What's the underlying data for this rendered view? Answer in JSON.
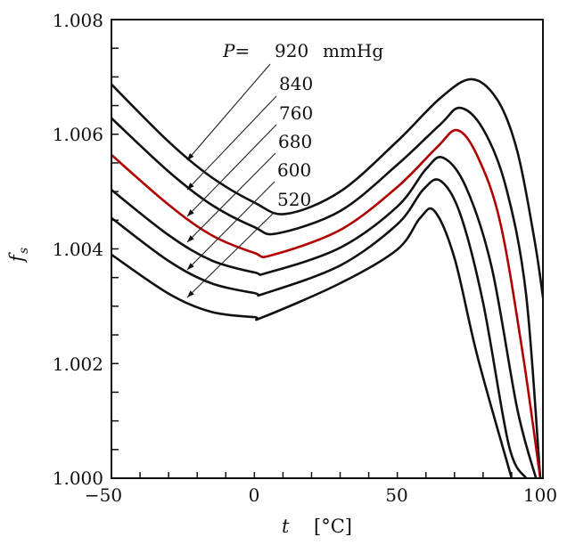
{
  "chart_data": {
    "type": "line",
    "title": "",
    "xlabel_var": "t",
    "xlabel_unit": "[°C]",
    "ylabel_var": "f",
    "ylabel_sub": "s",
    "xlim": [
      -50,
      101
    ],
    "ylim": [
      1.0,
      1.008
    ],
    "x_ticks": [
      -50,
      0,
      50,
      100
    ],
    "x_tick_labels": [
      "−50",
      "0",
      "50",
      "100"
    ],
    "x_minor_step": 10,
    "y_ticks": [
      1.0,
      1.002,
      1.004,
      1.006,
      1.008
    ],
    "y_tick_labels": [
      "1.000",
      "1.002",
      "1.004",
      "1.006",
      "1.008"
    ],
    "y_minor_step": 0.0005,
    "grid": false,
    "legend_title": "P=",
    "legend_unit": "mmHg",
    "highlight_color": "#b00000",
    "line_color": "#111111",
    "series": [
      {
        "name": "920",
        "label": "920",
        "highlight": false,
        "t": [
          -50,
          -30,
          -15,
          0,
          11,
          30,
          50,
          65,
          76,
          85,
          92,
          98,
          101
        ],
        "f": [
          1.00687,
          1.00587,
          1.00525,
          1.00481,
          1.00461,
          1.005,
          1.00588,
          1.00663,
          1.00696,
          1.0066,
          1.0057,
          1.00415,
          1.00314
        ]
      },
      {
        "name": "840",
        "label": "840",
        "highlight": false,
        "t": [
          -50,
          -30,
          -15,
          0,
          8,
          30,
          50,
          65,
          72,
          80,
          88,
          95,
          100
        ],
        "f": [
          1.00628,
          1.00535,
          1.00477,
          1.00438,
          1.00427,
          1.00466,
          1.00547,
          1.00617,
          1.00646,
          1.00609,
          1.00508,
          1.00322,
          1.0
        ]
      },
      {
        "name": "760",
        "label": "760",
        "highlight": true,
        "t": [
          -50,
          -30,
          -15,
          0,
          6,
          30,
          50,
          64,
          71,
          78,
          86,
          94,
          100
        ],
        "f": [
          1.00564,
          1.00477,
          1.00424,
          1.00393,
          1.00389,
          1.00433,
          1.00508,
          1.00578,
          1.00607,
          1.00562,
          1.00446,
          1.00213,
          1.0
        ]
      },
      {
        "name": "680",
        "label": "680",
        "highlight": false,
        "t": [
          -50,
          -30,
          -15,
          0,
          5,
          30,
          50,
          60,
          66,
          74,
          83,
          92,
          98.5
        ],
        "f": [
          1.00503,
          1.00424,
          1.0038,
          1.00359,
          1.00359,
          1.00402,
          1.00474,
          1.00539,
          1.00559,
          1.00508,
          1.00368,
          1.0012,
          1.0
        ]
      },
      {
        "name": "600",
        "label": "600",
        "highlight": false,
        "t": [
          -50,
          -30,
          -15,
          0,
          4,
          30,
          50,
          59,
          65,
          72,
          80,
          89,
          95
        ],
        "f": [
          1.00454,
          1.00379,
          1.0034,
          1.00323,
          1.00323,
          1.00371,
          1.00443,
          1.00503,
          1.00519,
          1.00461,
          1.00306,
          1.00058,
          1.0
        ]
      },
      {
        "name": "520",
        "label": "520",
        "highlight": false,
        "t": [
          -50,
          -30,
          -15,
          0,
          3,
          30,
          50,
          58,
          63,
          70,
          78,
          90
        ],
        "f": [
          1.0039,
          1.00322,
          1.0029,
          1.00281,
          1.00281,
          1.0034,
          1.00399,
          1.00454,
          1.00466,
          1.00384,
          1.00213,
          1.0
        ]
      }
    ],
    "pointers": [
      {
        "series": "920",
        "t": -23.5
      },
      {
        "series": "840",
        "t": -23.5
      },
      {
        "series": "760",
        "t": -23.5
      },
      {
        "series": "680",
        "t": -23.5
      },
      {
        "series": "600",
        "t": -23.5
      },
      {
        "series": "520",
        "t": -23.5
      }
    ]
  }
}
